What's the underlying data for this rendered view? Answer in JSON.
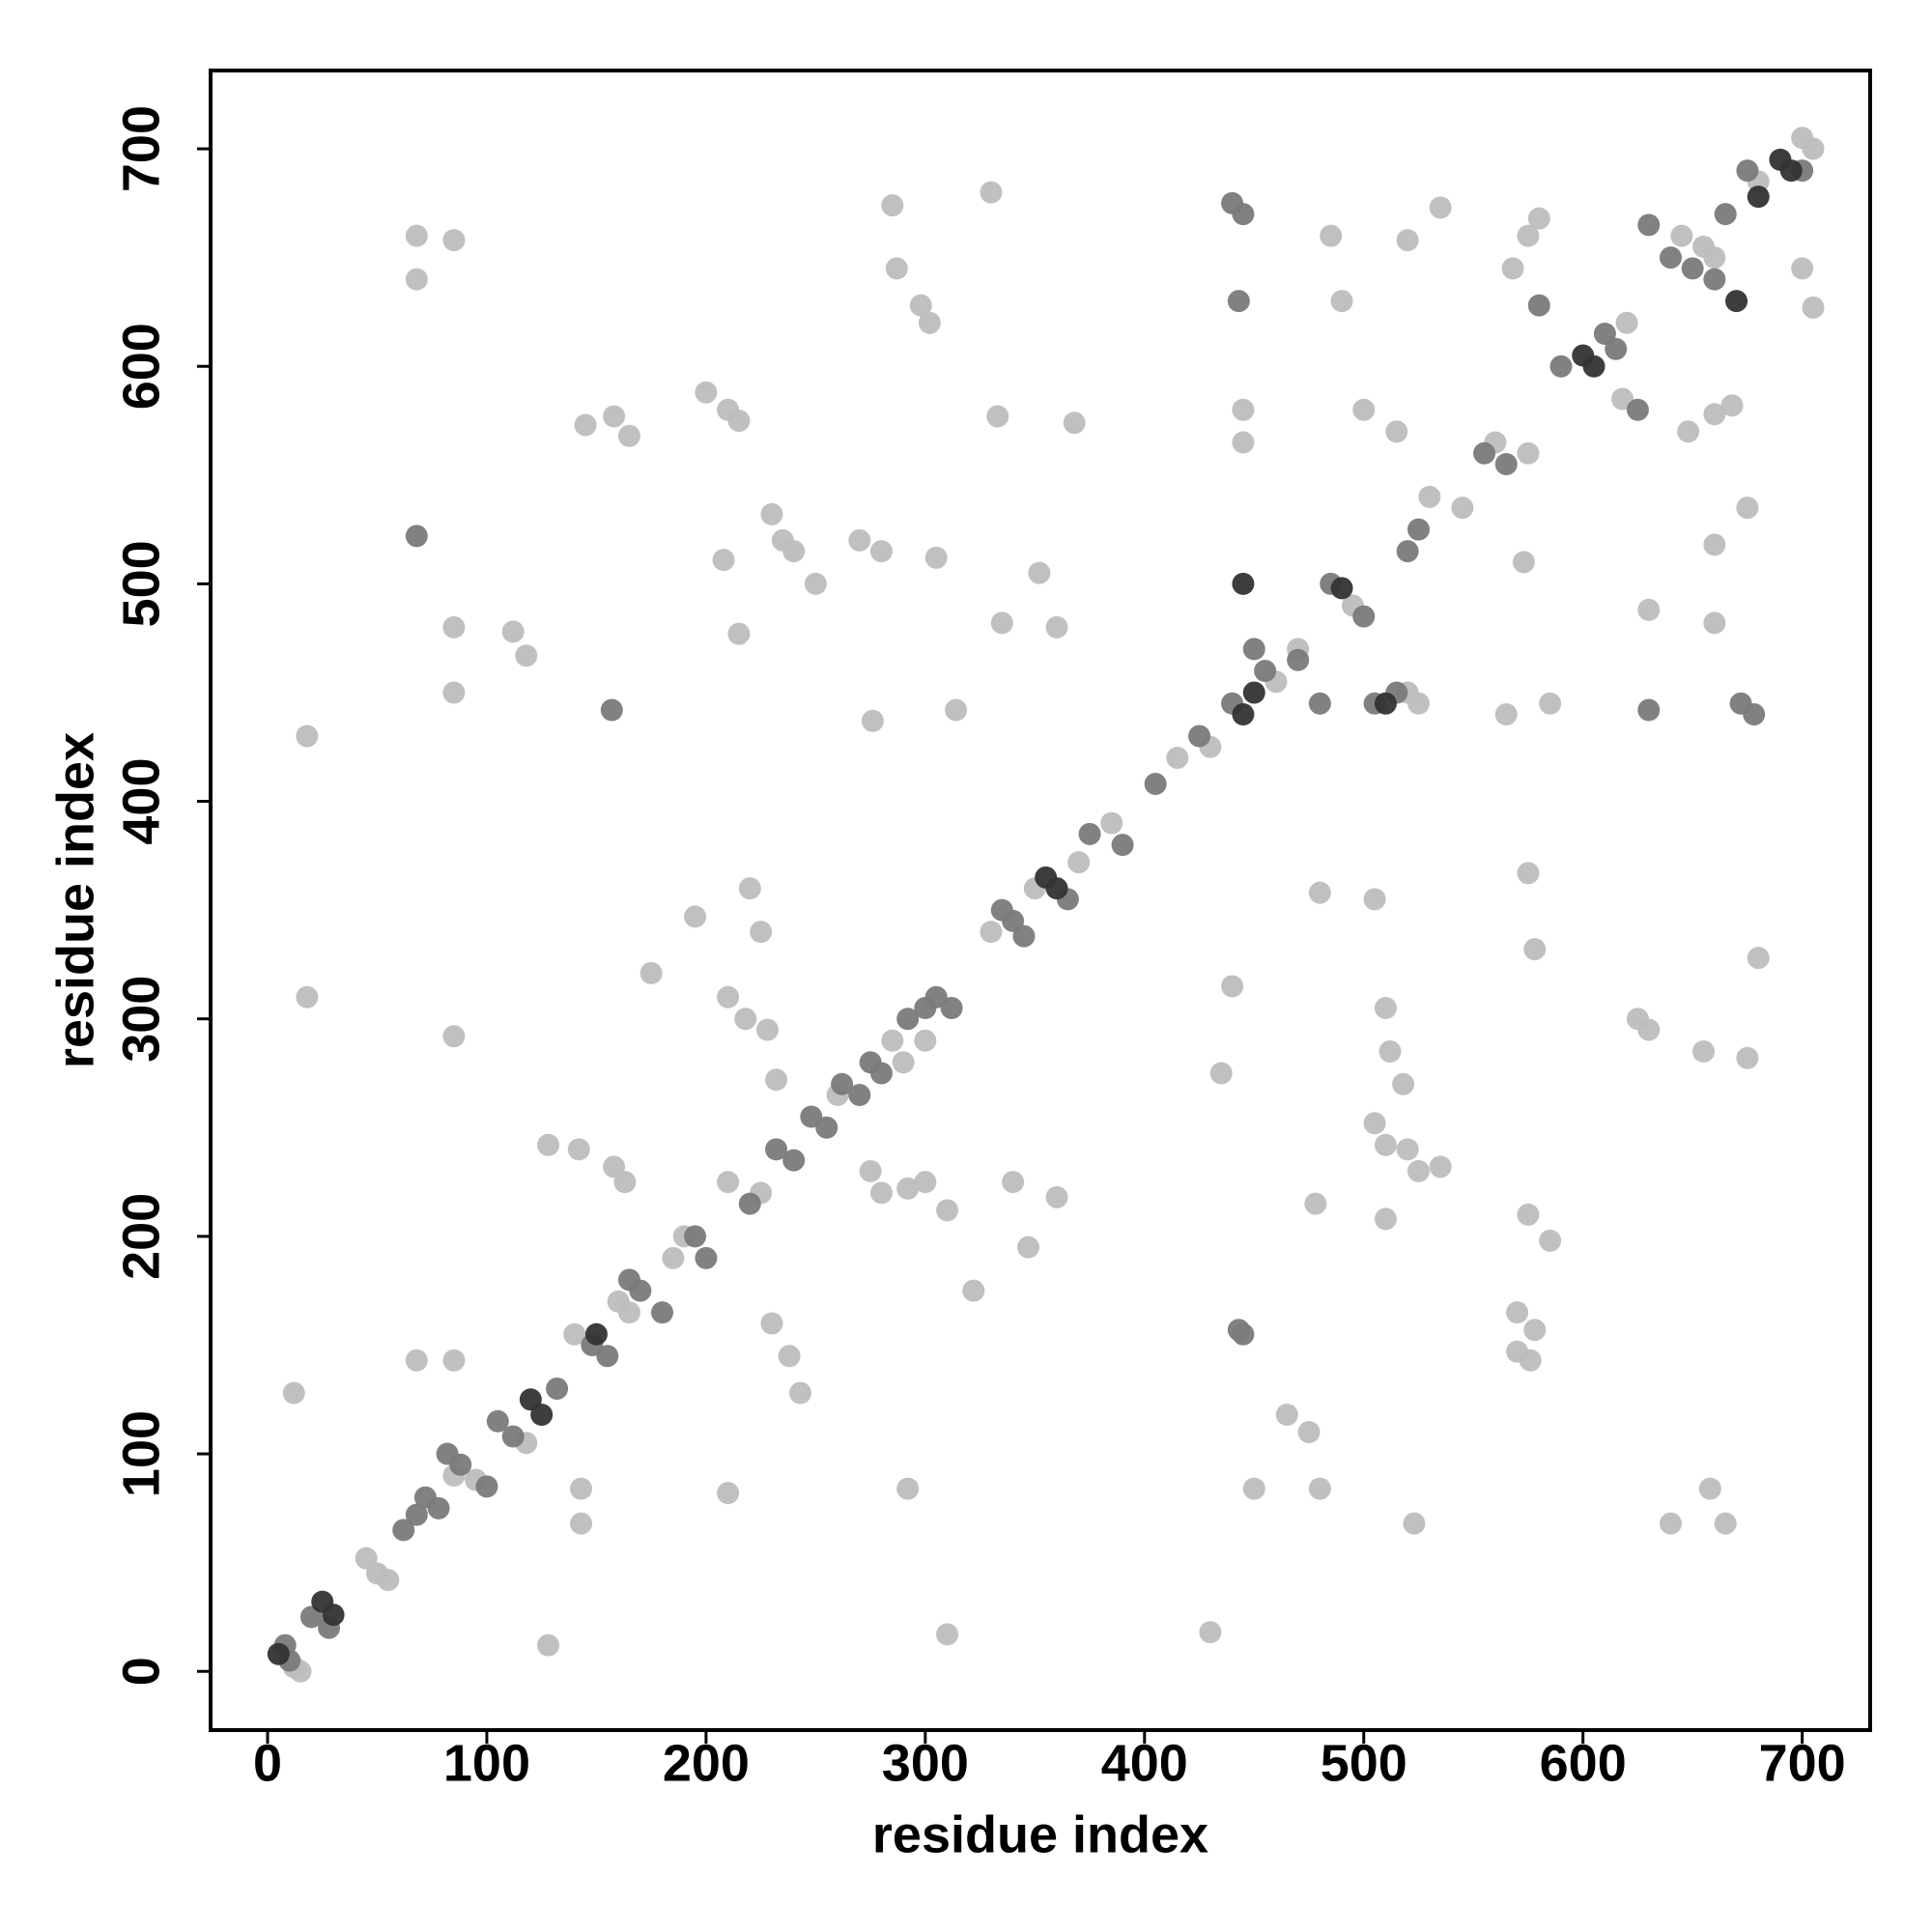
{
  "chart_data": {
    "type": "scatter",
    "xlabel": "residue index",
    "ylabel": "residue index",
    "xlim": [
      -26,
      731
    ],
    "ylim": [
      -27,
      736
    ],
    "xticks": [
      0,
      100,
      200,
      300,
      400,
      500,
      600,
      700
    ],
    "yticks": [
      0,
      100,
      200,
      300,
      400,
      500,
      600,
      700
    ],
    "grid": false,
    "series": [
      {
        "color": "#bdbdbd",
        "x": [
          15,
          12,
          45,
          50,
          55,
          85,
          95,
          118,
          140,
          160,
          165,
          185,
          190,
          210,
          225,
          260,
          285,
          290,
          300,
          330,
          350,
          370,
          385,
          415,
          430,
          460,
          470,
          495,
          520,
          525,
          530,
          545,
          560,
          575,
          620,
          645,
          655,
          660,
          680,
          705,
          700,
          68,
          68,
          85,
          18,
          12,
          18,
          85,
          85,
          85,
          112,
          118,
          145,
          158,
          165,
          200,
          210,
          215,
          215,
          208,
          230,
          235,
          240,
          250,
          270,
          280,
          285,
          287,
          298,
          302,
          305,
          330,
          333,
          335,
          352,
          360,
          368,
          314,
          276,
          220,
          225,
          195,
          175,
          210,
          218,
          142,
          128,
          158,
          163,
          230,
          238,
          243,
          210,
          292,
          310,
          128,
          68,
          85,
          143,
          143,
          292,
          300,
          310,
          322,
          340,
          347,
          360,
          275,
          280,
          228,
          232,
          445,
          445,
          485,
          490,
          520,
          535,
          568,
          575,
          580,
          618,
          648,
          660,
          668,
          660,
          675,
          630,
          660,
          700,
          705,
          573,
          565,
          585,
          440,
          435,
          480,
          505,
          510,
          512,
          518,
          505,
          510,
          520,
          525,
          535,
          510,
          478,
          575,
          585,
          570,
          578,
          570,
          576,
          450,
          480,
          475,
          465,
          523,
          640,
          658,
          665,
          430,
          625,
          630,
          655,
          675,
          680,
          575,
          578,
          500,
          515
        ],
        "y": [
          0,
          2,
          52,
          45,
          42,
          90,
          88,
          105,
          155,
          170,
          165,
          190,
          200,
          225,
          220,
          265,
          290,
          280,
          290,
          340,
          360,
          372,
          390,
          420,
          425,
          455,
          470,
          490,
          450,
          445,
          540,
          535,
          565,
          560,
          620,
          660,
          655,
          650,
          685,
          700,
          705,
          660,
          640,
          658,
          430,
          128,
          310,
          292,
          480,
          450,
          478,
          467,
          573,
          577,
          568,
          588,
          580,
          575,
          477,
          511,
          532,
          520,
          515,
          500,
          520,
          515,
          674,
          645,
          628,
          620,
          512,
          680,
          577,
          482,
          505,
          480,
          574,
          442,
          437,
          360,
          340,
          347,
          321,
          310,
          300,
          240,
          242,
          232,
          225,
          160,
          145,
          128,
          82,
          84,
          17,
          12,
          143,
          143,
          84,
          68,
          222,
          225,
          212,
          175,
          225,
          195,
          218,
          230,
          220,
          295,
          272,
          580,
          565,
          660,
          630,
          658,
          673,
          645,
          660,
          668,
          585,
          570,
          578,
          582,
          518,
          535,
          488,
          482,
          645,
          627,
          510,
          440,
          445,
          315,
          275,
          358,
          355,
          305,
          285,
          270,
          252,
          242,
          240,
          230,
          232,
          208,
          215,
          210,
          198,
          165,
          157,
          147,
          143,
          84,
          84,
          110,
          118,
          68,
          68,
          84,
          68,
          18,
          300,
          295,
          285,
          282,
          328,
          367,
          332,
          580,
          570
        ]
      },
      {
        "color": "#7a7a7a",
        "x": [
          10,
          8,
          20,
          28,
          62,
          68,
          72,
          78,
          82,
          88,
          100,
          105,
          112,
          132,
          148,
          155,
          165,
          170,
          180,
          195,
          200,
          220,
          232,
          240,
          248,
          255,
          262,
          270,
          275,
          280,
          292,
          305,
          312,
          335,
          340,
          345,
          365,
          375,
          390,
          405,
          425,
          440,
          450,
          455,
          470,
          480,
          485,
          500,
          505,
          515,
          520,
          525,
          555,
          565,
          590,
          610,
          615,
          625,
          630,
          640,
          650,
          660,
          665,
          675,
          700,
          157,
          443,
          445,
          630,
          672,
          678,
          440,
          445,
          443,
          68,
          300,
          580
        ],
        "y": [
          5,
          12,
          25,
          20,
          65,
          72,
          80,
          75,
          100,
          95,
          85,
          115,
          108,
          130,
          150,
          145,
          180,
          175,
          165,
          200,
          190,
          215,
          240,
          235,
          255,
          250,
          270,
          265,
          280,
          275,
          300,
          310,
          305,
          350,
          345,
          338,
          355,
          385,
          380,
          408,
          430,
          445,
          470,
          460,
          465,
          445,
          500,
          485,
          445,
          450,
          515,
          525,
          560,
          555,
          600,
          615,
          608,
          580,
          665,
          650,
          645,
          640,
          670,
          690,
          690,
          442,
          157,
          155,
          442,
          445,
          440,
          675,
          670,
          630,
          522,
          305,
          628
        ]
      },
      {
        "color": "#333333",
        "x": [
          5,
          25,
          30,
          120,
          125,
          150,
          355,
          360,
          600,
          605,
          690,
          695,
          490,
          450,
          445,
          670,
          445,
          510,
          680
        ],
        "y": [
          8,
          32,
          26,
          125,
          118,
          155,
          365,
          360,
          605,
          600,
          695,
          690,
          498,
          450,
          500,
          630,
          440,
          445,
          678
        ]
      }
    ]
  }
}
